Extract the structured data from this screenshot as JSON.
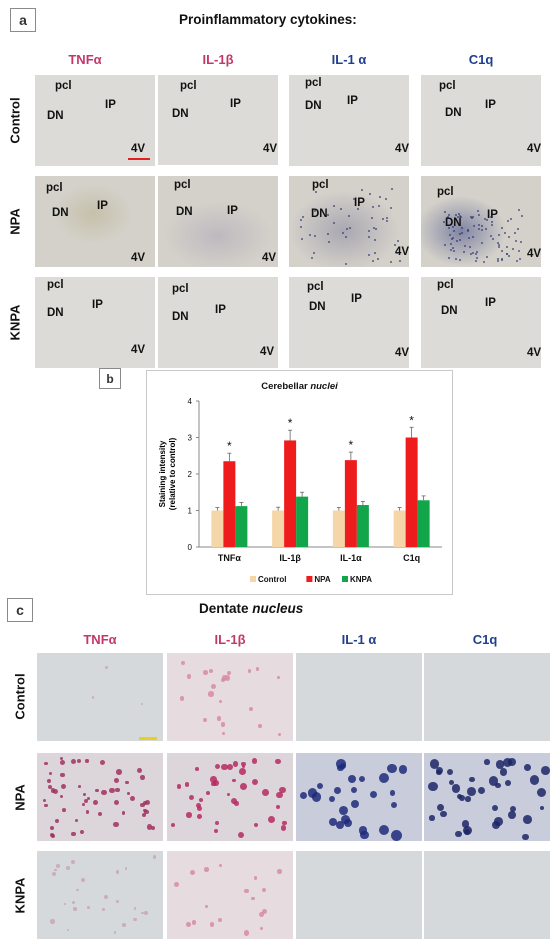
{
  "panel_a": {
    "label": "a",
    "title": "Proinflammatory cytokines:",
    "columns": [
      {
        "label": "TNFα",
        "color": "#c1386b"
      },
      {
        "label": "IL-1β",
        "color": "#c1386b"
      },
      {
        "label": "IL-1 α",
        "color": "#1f3f8f"
      },
      {
        "label": "C1q",
        "color": "#1f3f8f"
      }
    ],
    "rows": [
      "Control",
      "NPA",
      "KNPA"
    ],
    "tile_labels": {
      "pcl": "pcl",
      "dn": "DN",
      "ip": "IP",
      "v4": "4V"
    },
    "scale_bar_color": "#e02020"
  },
  "panel_b": {
    "label": "b"
  },
  "chart_data": {
    "type": "bar",
    "title": "Cerebellar nuclei",
    "title_plain": "Cerebellar ",
    "title_italic": "nuclei",
    "ylabel_line1": "Staining intensity",
    "ylabel_line2": "(relative to control)",
    "ylim": [
      0,
      4
    ],
    "yticks": [
      "0",
      "1",
      "2",
      "3",
      "4"
    ],
    "categories": [
      "TNFα",
      "IL-1β",
      "IL-1α",
      "C1q"
    ],
    "series": [
      {
        "name": "Control",
        "color": "#f5d6a8",
        "values": [
          1.0,
          1.0,
          1.0,
          1.0
        ],
        "errors": [
          0.08,
          0.09,
          0.08,
          0.08
        ]
      },
      {
        "name": "NPA",
        "color": "#ee1c1c",
        "values": [
          2.35,
          2.92,
          2.38,
          3.0
        ],
        "errors": [
          0.22,
          0.28,
          0.22,
          0.28
        ]
      },
      {
        "name": "KNPA",
        "color": "#12a54a",
        "values": [
          1.12,
          1.38,
          1.15,
          1.28
        ],
        "errors": [
          0.1,
          0.12,
          0.1,
          0.12
        ]
      }
    ],
    "significance_marker": "*",
    "significant_series": "NPA",
    "legend_position": "bottom"
  },
  "panel_c": {
    "label": "c",
    "title_plain": "Dentate ",
    "title_italic": "nucleus",
    "columns": [
      {
        "label": "TNFα",
        "color": "#c1386b"
      },
      {
        "label": "IL-1β",
        "color": "#c1386b"
      },
      {
        "label": "IL-1 α",
        "color": "#1f3f8f"
      },
      {
        "label": "C1q",
        "color": "#1f3f8f"
      }
    ],
    "rows": [
      "Control",
      "NPA",
      "KNPA"
    ],
    "scale_bar_color": "#e6d21a"
  }
}
